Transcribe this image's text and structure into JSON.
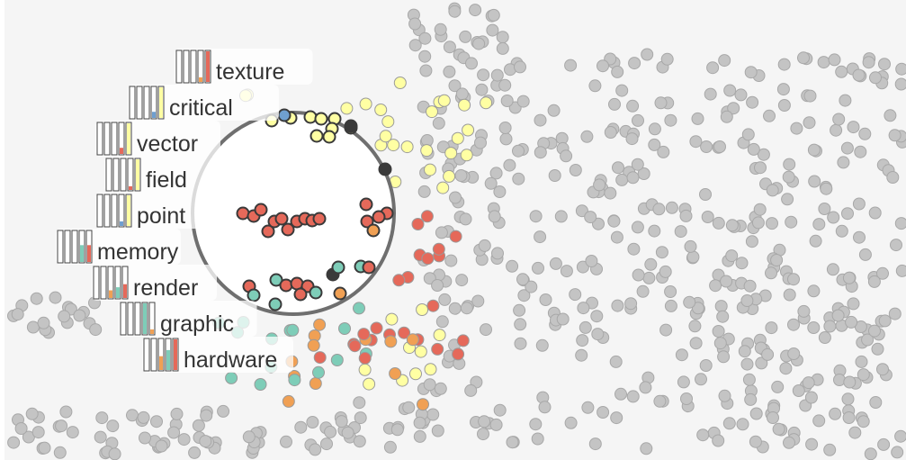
{
  "colors": {
    "background": "#f5f5f5",
    "gray_dot": "#c4c4c4",
    "gray_stroke": "#a8a8a8",
    "yellow": "#ffffa3",
    "red": "#e5695a",
    "orange": "#f0a054",
    "teal": "#7ecdb8",
    "blue": "#6f9fcf",
    "lens_ring": "#6f6f6f",
    "dark": "#3a3a3a"
  },
  "chart_data": {
    "type": "scatter",
    "description_free": true,
    "keyword_labels": [
      {
        "word": "texture",
        "bars": [
          {
            "color": "orange",
            "value": 0.15
          },
          {
            "color": "red",
            "value": 1.0
          }
        ]
      },
      {
        "word": "critical",
        "bars": [
          {
            "color": "blue",
            "value": 0.2
          },
          {
            "color": "yellow",
            "value": 1.0
          }
        ]
      },
      {
        "word": "vector",
        "bars": [
          {
            "color": "red",
            "value": 0.2
          },
          {
            "color": "yellow",
            "value": 1.0
          }
        ]
      },
      {
        "word": "field",
        "bars": [
          {
            "color": "red",
            "value": 0.12
          },
          {
            "color": "yellow",
            "value": 1.0
          }
        ]
      },
      {
        "word": "point",
        "bars": [
          {
            "color": "blue",
            "value": 0.15
          },
          {
            "color": "yellow",
            "value": 1.0
          }
        ]
      },
      {
        "word": "memory",
        "bars": [
          {
            "color": "teal",
            "value": 0.55
          },
          {
            "color": "red",
            "value": 0.55
          }
        ]
      },
      {
        "word": "render",
        "bars": [
          {
            "color": "orange",
            "value": 0.25
          },
          {
            "color": "teal",
            "value": 0.35
          },
          {
            "color": "red",
            "value": 0.45
          }
        ]
      },
      {
        "word": "graphic",
        "bars": [
          {
            "color": "teal",
            "value": 1.0
          },
          {
            "color": "orange",
            "value": 0.15
          }
        ]
      },
      {
        "word": "hardware",
        "bars": [
          {
            "color": "orange",
            "value": 0.45
          },
          {
            "color": "teal",
            "value": 0.65
          },
          {
            "color": "red",
            "value": 1.0
          }
        ]
      }
    ],
    "series": [
      {
        "color": "yellow",
        "count": 45
      },
      {
        "color": "red",
        "count": 40
      },
      {
        "color": "orange",
        "count": 12
      },
      {
        "color": "teal",
        "count": 20
      },
      {
        "color": "gray",
        "count": 620
      }
    ]
  }
}
